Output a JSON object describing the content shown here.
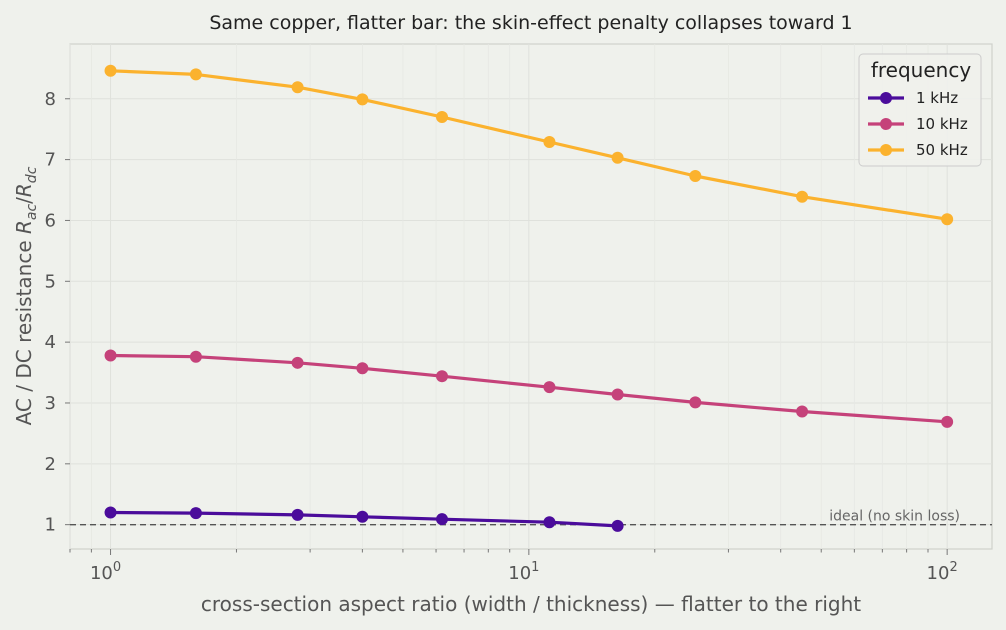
{
  "chart_data": {
    "type": "line",
    "title": "Same copper, flatter bar: the skin-effect penalty collapses toward 1",
    "xlabel": "cross-section aspect ratio (width / thickness)  —  flatter to the right",
    "ylabel_text": "AC / DC resistance",
    "ylabel_math": {
      "base1": "R",
      "sub1": "ac",
      "slash": "/",
      "base2": "R",
      "sub2": "dc"
    },
    "x_scale": "log",
    "xlim": [
      0.8,
      128
    ],
    "ylim": [
      0.6,
      8.9
    ],
    "x_ticks": [
      {
        "value": 1,
        "base": "10",
        "exp": "0"
      },
      {
        "value": 10,
        "base": "10",
        "exp": "1"
      },
      {
        "value": 100,
        "base": "10",
        "exp": "2"
      }
    ],
    "y_ticks": [
      "1",
      "2",
      "3",
      "4",
      "5",
      "6",
      "7",
      "8"
    ],
    "grid": true,
    "legend": {
      "title": "frequency",
      "position": "top-right"
    },
    "reference_line": {
      "y": 1,
      "label": "ideal (no skin loss)",
      "style": "dashed",
      "color": "#555555"
    },
    "series": [
      {
        "name": "1 kHz",
        "color": "#4b0c9b",
        "x": [
          1,
          1.6,
          2.8,
          4,
          6.2,
          11.2,
          16.3
        ],
        "y": [
          1.2,
          1.19,
          1.16,
          1.13,
          1.09,
          1.04,
          0.98
        ]
      },
      {
        "name": "10 kHz",
        "color": "#c5427a",
        "x": [
          1,
          1.6,
          2.8,
          4,
          6.2,
          11.2,
          16.3,
          25,
          45,
          100
        ],
        "y": [
          3.78,
          3.76,
          3.66,
          3.57,
          3.44,
          3.26,
          3.14,
          3.01,
          2.86,
          2.69
        ]
      },
      {
        "name": "50 kHz",
        "color": "#fbb22e",
        "x": [
          1,
          1.6,
          2.8,
          4,
          6.2,
          11.2,
          16.3,
          25,
          45,
          100
        ],
        "y": [
          8.46,
          8.4,
          8.19,
          7.99,
          7.7,
          7.29,
          7.03,
          6.73,
          6.39,
          6.02
        ]
      }
    ]
  }
}
